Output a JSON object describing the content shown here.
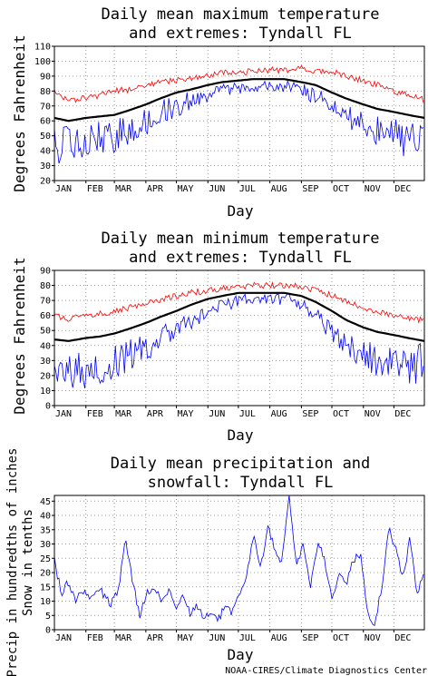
{
  "charts": [
    {
      "type": "line",
      "title_lines": [
        "Daily mean maximum temperature",
        "and extremes: Tyndall FL"
      ],
      "xlabel": "Day",
      "ylabel": "Degrees Fahrenheit",
      "ylim": [
        20,
        110
      ],
      "yticks": [
        20,
        30,
        40,
        50,
        60,
        70,
        80,
        90,
        100,
        110
      ],
      "months": [
        "JAN",
        "FEB",
        "MAR",
        "APR",
        "MAY",
        "JUN",
        "JUL",
        "AUG",
        "SEP",
        "OCT",
        "NOV",
        "DEC"
      ],
      "grid": true,
      "colors": {
        "mean": "#000000",
        "high": "#ff0000",
        "low": "#0000ff"
      },
      "series": [
        {
          "key": "high",
          "x": [
            1,
            15,
            32,
            46,
            60,
            74,
            91,
            105,
            121,
            135,
            152,
            166,
            182,
            196,
            213,
            227,
            244,
            258,
            274,
            288,
            305,
            319,
            335,
            349,
            365
          ],
          "values": [
            80,
            74,
            75,
            77,
            80,
            81,
            84,
            86,
            87,
            89,
            90,
            92,
            93,
            93,
            94,
            94,
            95,
            94,
            93,
            90,
            87,
            84,
            80,
            77,
            74
          ]
        },
        {
          "key": "mean",
          "x": [
            1,
            15,
            32,
            46,
            60,
            74,
            91,
            105,
            121,
            135,
            152,
            166,
            182,
            196,
            213,
            227,
            244,
            258,
            274,
            288,
            305,
            319,
            335,
            349,
            365
          ],
          "values": [
            62,
            60,
            62,
            63,
            64,
            67,
            71,
            75,
            79,
            81,
            84,
            86,
            87,
            88,
            88,
            88,
            86,
            84,
            79,
            75,
            71,
            68,
            66,
            64,
            62
          ]
        },
        {
          "key": "low",
          "x": [
            1,
            15,
            32,
            46,
            60,
            74,
            91,
            105,
            121,
            135,
            152,
            166,
            182,
            196,
            213,
            227,
            244,
            258,
            274,
            288,
            305,
            319,
            335,
            349,
            365
          ],
          "values": [
            44,
            43,
            45,
            48,
            50,
            55,
            60,
            66,
            70,
            74,
            78,
            80,
            82,
            83,
            83,
            83,
            81,
            76,
            70,
            64,
            58,
            54,
            50,
            47,
            48
          ]
        }
      ]
    },
    {
      "type": "line",
      "title_lines": [
        "Daily mean minimum temperature",
        "and extremes: Tyndall FL"
      ],
      "xlabel": "Day",
      "ylabel": "Degrees Fahrenheit",
      "ylim": [
        0,
        90
      ],
      "yticks": [
        0,
        10,
        20,
        30,
        40,
        50,
        60,
        70,
        80,
        90
      ],
      "months": [
        "JAN",
        "FEB",
        "MAR",
        "APR",
        "MAY",
        "JUN",
        "JUL",
        "AUG",
        "SEP",
        "OCT",
        "NOV",
        "DEC"
      ],
      "grid": true,
      "colors": {
        "mean": "#000000",
        "high": "#ff0000",
        "low": "#0000ff"
      },
      "series": [
        {
          "key": "high",
          "x": [
            1,
            15,
            32,
            46,
            60,
            74,
            91,
            105,
            121,
            135,
            152,
            166,
            182,
            196,
            213,
            227,
            244,
            258,
            274,
            288,
            305,
            319,
            335,
            349,
            365
          ],
          "values": [
            60,
            58,
            60,
            61,
            63,
            65,
            68,
            70,
            73,
            75,
            77,
            78,
            79,
            80,
            80,
            80,
            79,
            77,
            73,
            70,
            65,
            62,
            60,
            58,
            57
          ]
        },
        {
          "key": "mean",
          "x": [
            1,
            15,
            32,
            46,
            60,
            74,
            91,
            105,
            121,
            135,
            152,
            166,
            182,
            196,
            213,
            227,
            244,
            258,
            274,
            288,
            305,
            319,
            335,
            349,
            365
          ],
          "values": [
            44,
            43,
            45,
            46,
            48,
            51,
            55,
            59,
            63,
            67,
            71,
            73,
            75,
            75,
            75,
            75,
            73,
            69,
            63,
            57,
            52,
            49,
            47,
            45,
            43
          ]
        },
        {
          "key": "low",
          "x": [
            1,
            15,
            32,
            46,
            60,
            74,
            91,
            105,
            121,
            135,
            152,
            166,
            182,
            196,
            213,
            227,
            244,
            258,
            274,
            288,
            305,
            319,
            335,
            349,
            365
          ],
          "values": [
            28,
            22,
            24,
            25,
            28,
            33,
            38,
            45,
            50,
            56,
            62,
            66,
            70,
            71,
            71,
            71,
            68,
            60,
            50,
            40,
            34,
            30,
            28,
            24,
            30
          ]
        }
      ]
    },
    {
      "type": "line",
      "title_lines": [
        "Daily mean precipitation and",
        "snowfall: Tyndall FL"
      ],
      "xlabel": "Day",
      "ylabel_lines": [
        "Precip in hundredths of inches",
        "Snow in tenths"
      ],
      "ylim": [
        0,
        47
      ],
      "yticks": [
        0,
        5,
        10,
        15,
        20,
        25,
        30,
        35,
        40,
        45
      ],
      "months": [
        "JAN",
        "FEB",
        "MAR",
        "APR",
        "MAY",
        "JUN",
        "JUL",
        "AUG",
        "SEP",
        "OCT",
        "NOV",
        "DEC"
      ],
      "grid": true,
      "colors": {
        "precip": "#0000ff",
        "snow": "#ff0000"
      },
      "series": [
        {
          "key": "precip",
          "x": [
            1,
            8,
            15,
            22,
            29,
            36,
            43,
            50,
            57,
            64,
            71,
            78,
            85,
            92,
            99,
            106,
            113,
            120,
            127,
            134,
            141,
            148,
            155,
            162,
            169,
            176,
            183,
            190,
            197,
            204,
            211,
            218,
            225,
            232,
            239,
            246,
            253,
            260,
            267,
            274,
            281,
            288,
            295,
            302,
            309,
            316,
            323,
            330,
            337,
            344,
            351,
            358,
            365
          ],
          "values": [
            24,
            13,
            17,
            10,
            14,
            11,
            15,
            12,
            9,
            14,
            31,
            17,
            5,
            13,
            15,
            11,
            14,
            8,
            12,
            6,
            8,
            4,
            5,
            3,
            9,
            6,
            12,
            19,
            34,
            22,
            36,
            28,
            24,
            46,
            22,
            30,
            14,
            31,
            24,
            11,
            20,
            16,
            24,
            27,
            6,
            1,
            15,
            36,
            28,
            18,
            32,
            12,
            20
          ]
        },
        {
          "key": "snow",
          "x": [
            1,
            365
          ],
          "values": [
            0,
            0
          ]
        }
      ]
    }
  ],
  "credit": "NOAA-CIRES/Climate Diagnostics Center"
}
